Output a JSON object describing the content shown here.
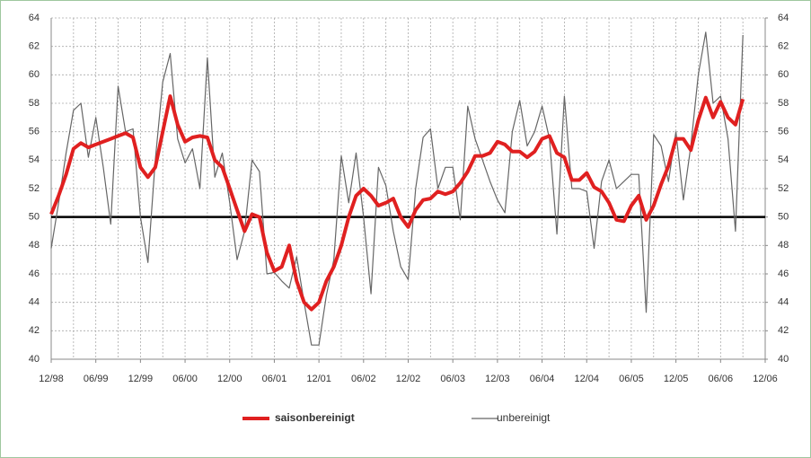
{
  "chart_data": {
    "type": "line",
    "categories": [
      "12/98",
      null,
      null,
      null,
      null,
      null,
      "06/99",
      null,
      null,
      null,
      null,
      null,
      "12/99",
      null,
      null,
      null,
      null,
      null,
      "06/00",
      null,
      null,
      null,
      null,
      null,
      "12/00",
      null,
      null,
      null,
      null,
      null,
      "06/01",
      null,
      null,
      null,
      null,
      null,
      "12/01",
      null,
      null,
      null,
      null,
      null,
      "06/02",
      null,
      null,
      null,
      null,
      null,
      "12/02",
      null,
      null,
      null,
      null,
      null,
      "06/03",
      null,
      null,
      null,
      null,
      null,
      "12/03",
      null,
      null,
      null,
      null,
      null,
      "06/04",
      null,
      null,
      null,
      null,
      null,
      "12/04",
      null,
      null,
      null,
      null,
      null,
      "06/05",
      null,
      null,
      null,
      null,
      null,
      "12/05",
      null,
      null,
      null,
      null,
      null,
      "06/06",
      null,
      null,
      null,
      null,
      null,
      "12/06"
    ],
    "series": [
      {
        "name": "saisonbereinigt",
        "color": "#e02020",
        "width": 4,
        "values": [
          50.2,
          51.5,
          53,
          54.8,
          55.2,
          54.9,
          55.1,
          55.3,
          55.5,
          55.7,
          55.9,
          55.6,
          53.5,
          52.8,
          53.5,
          56,
          58.5,
          56.5,
          55.3,
          55.6,
          55.7,
          55.6,
          54,
          53.5,
          52,
          50.5,
          49,
          50.2,
          50,
          47.5,
          46.2,
          46.5,
          48,
          45.5,
          44,
          43.5,
          44,
          45.5,
          46.5,
          48,
          50,
          51.5,
          52,
          51.5,
          50.8,
          51,
          51.3,
          50,
          49.3,
          50.5,
          51.2,
          51.3,
          51.8,
          51.6,
          51.8,
          52.4,
          53.2,
          54.3,
          54.3,
          54.5,
          55.3,
          55.1,
          54.6,
          54.6,
          54.2,
          54.6,
          55.5,
          55.7,
          54.5,
          54.2,
          52.6,
          52.6,
          53.1,
          52.1,
          51.8,
          51,
          49.8,
          49.7,
          50.8,
          51.5,
          49.8,
          50.8,
          52.3,
          53.6,
          55.5,
          55.5,
          54.7,
          56.8,
          58.4,
          57,
          58.1,
          57,
          56.5,
          58.3,
          null,
          null,
          null
        ]
      },
      {
        "name": "unbereinigt",
        "color": "#666666",
        "width": 1.2,
        "values": [
          47.8,
          51,
          54.5,
          57.5,
          58,
          54.2,
          57,
          53.5,
          49.5,
          59.2,
          56,
          56.2,
          50,
          46.8,
          54,
          59.5,
          61.5,
          55.5,
          53.8,
          54.8,
          52,
          61.2,
          52.8,
          54.5,
          51,
          47,
          49,
          54,
          53.2,
          46,
          46.1,
          45.5,
          45,
          47.2,
          44,
          41,
          41,
          44.5,
          47,
          54.3,
          51,
          54.5,
          50,
          44.6,
          53.5,
          52.2,
          49,
          46.5,
          45.6,
          52,
          55.6,
          56.2,
          52,
          53.5,
          53.5,
          49.8,
          57.8,
          55.5,
          54,
          52.5,
          51.2,
          50.3,
          56,
          58.2,
          55,
          56,
          57.8,
          55.5,
          48.8,
          58.5,
          52,
          52,
          51.8,
          47.8,
          52.5,
          54,
          52,
          52.5,
          53,
          53,
          43.3,
          55.8,
          55,
          52.5,
          56,
          51.2,
          55,
          60,
          63,
          58,
          58.5,
          55.5,
          49,
          62.8,
          null,
          null,
          null
        ]
      }
    ],
    "ylim": [
      40,
      64
    ],
    "yticks": [
      40,
      42,
      44,
      46,
      48,
      50,
      52,
      54,
      56,
      58,
      60,
      62,
      64
    ],
    "y2lim": [
      40,
      64
    ],
    "y2ticks": [
      40,
      42,
      44,
      46,
      48,
      50,
      52,
      54,
      56,
      58,
      60,
      62,
      64
    ],
    "reference_line": 50,
    "grid": true,
    "legend": "bottom"
  }
}
